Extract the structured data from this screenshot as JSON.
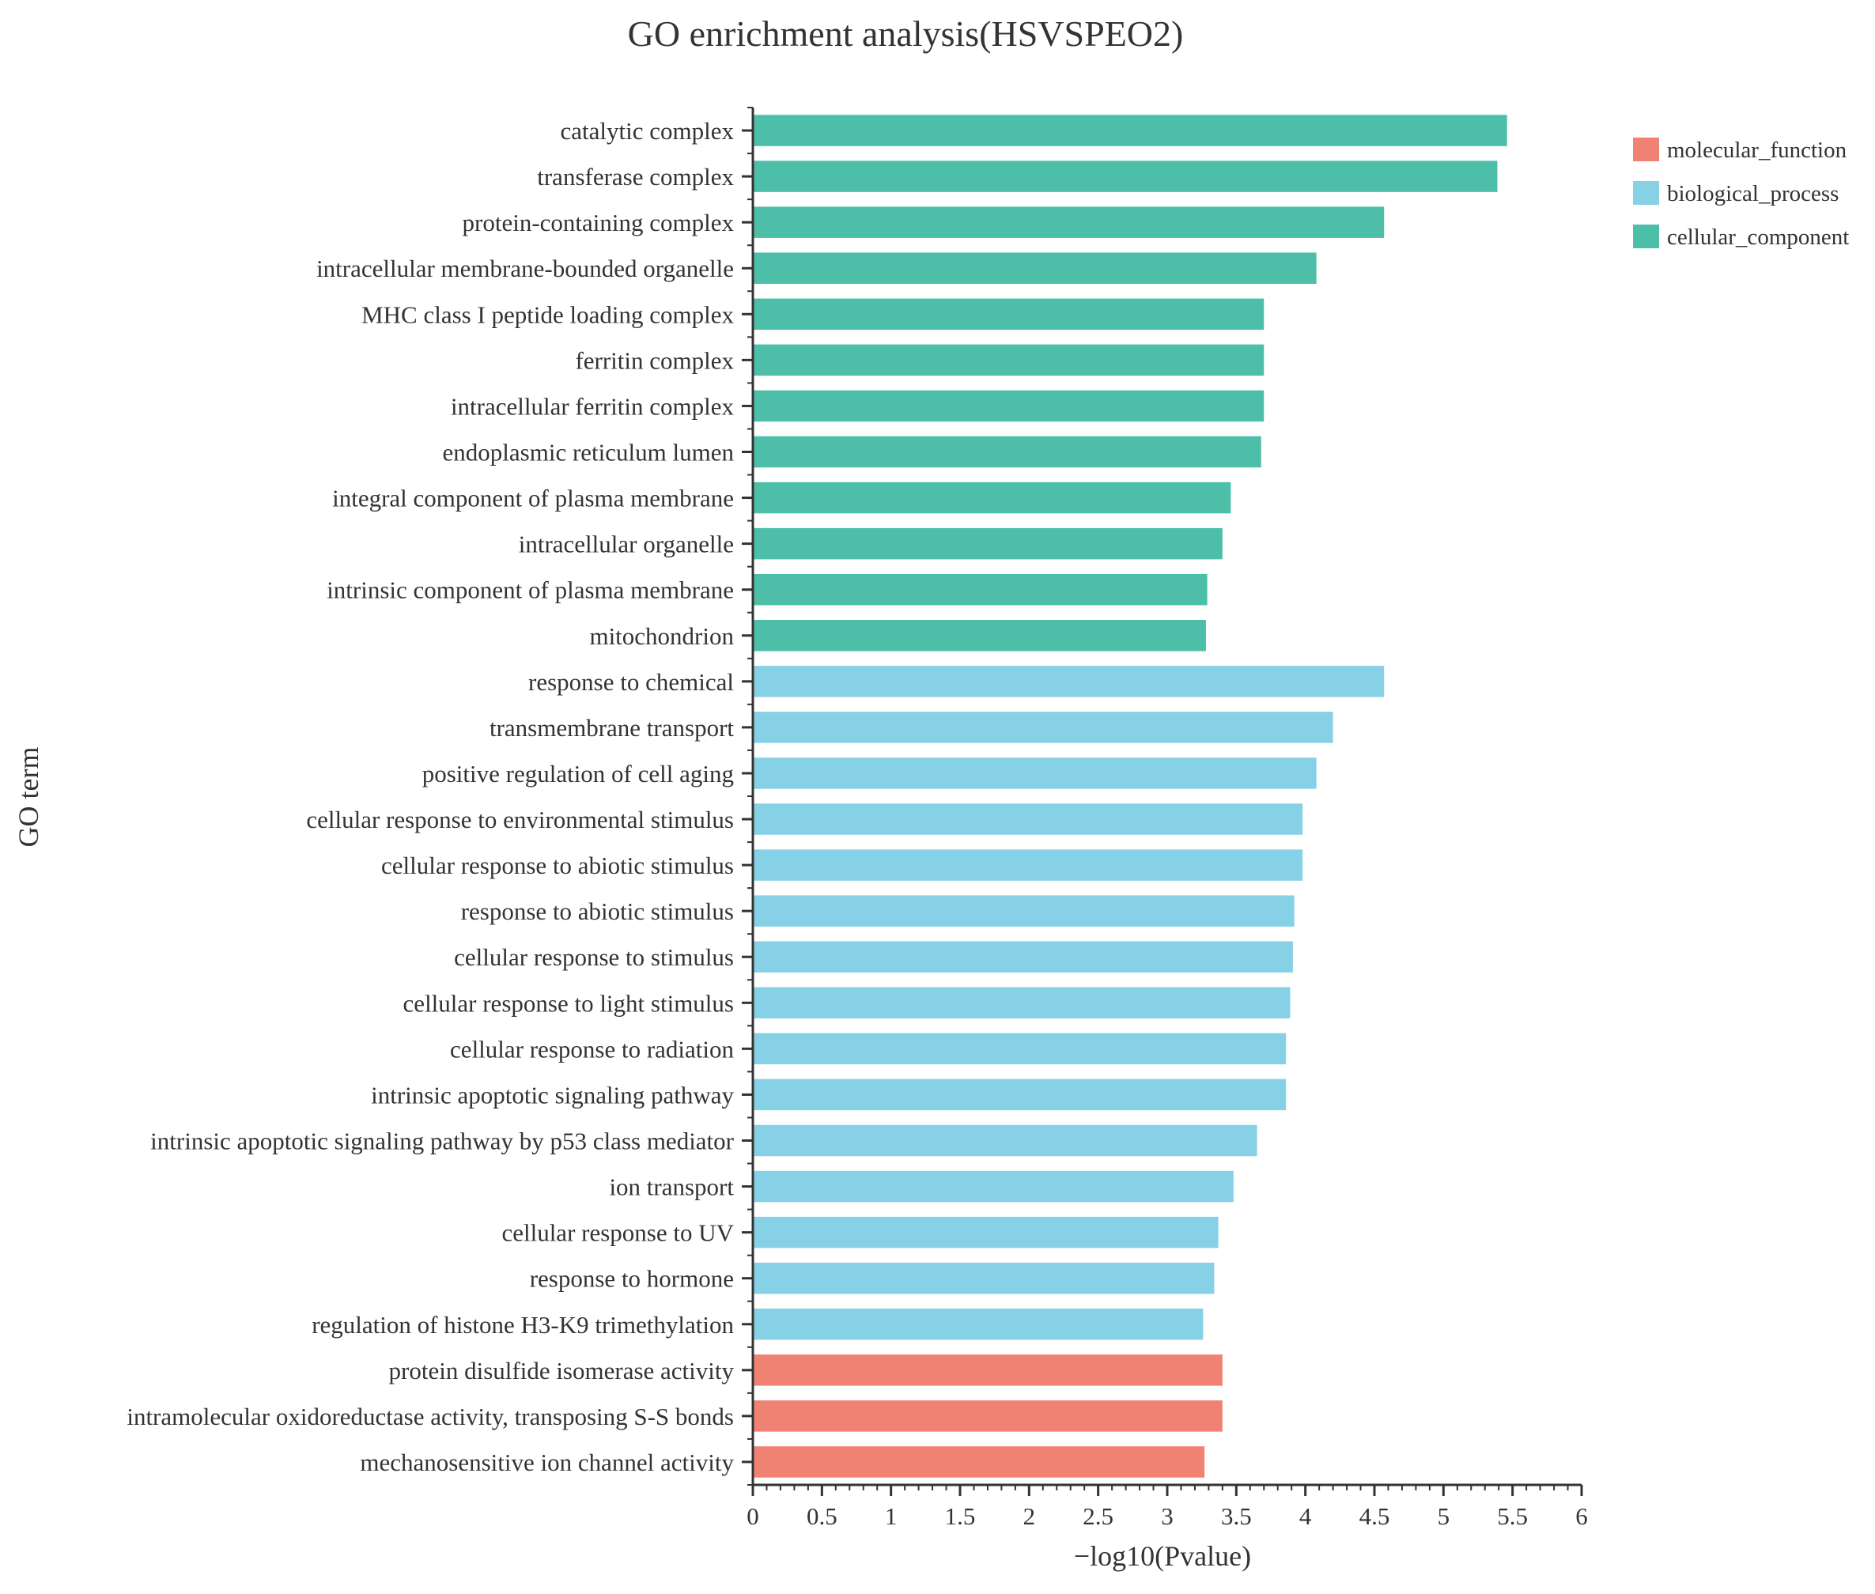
{
  "chart_data": {
    "type": "bar",
    "orientation": "horizontal",
    "title": "GO enrichment analysis(HSVSPEO2)",
    "xlabel": "−log10(Pvalue)",
    "ylabel": "GO term",
    "xlim": [
      0,
      6
    ],
    "x_ticks": [
      "0",
      "0.5",
      "1",
      "1.5",
      "2",
      "2.5",
      "3",
      "3.5",
      "4",
      "4.5",
      "5",
      "5.5",
      "6"
    ],
    "legend_position": "top-right",
    "legend": [
      {
        "name": "molecular_function",
        "color": "#F08274"
      },
      {
        "name": "biological_process",
        "color": "#87D1E6"
      },
      {
        "name": "cellular_component",
        "color": "#4DBEA8"
      }
    ],
    "bars": [
      {
        "term": "catalytic complex",
        "value": 5.46,
        "category": "cellular_component"
      },
      {
        "term": "transferase complex",
        "value": 5.39,
        "category": "cellular_component"
      },
      {
        "term": "protein-containing complex",
        "value": 4.57,
        "category": "cellular_component"
      },
      {
        "term": "intracellular membrane-bounded organelle",
        "value": 4.08,
        "category": "cellular_component"
      },
      {
        "term": "MHC class I peptide loading complex",
        "value": 3.7,
        "category": "cellular_component"
      },
      {
        "term": "ferritin complex",
        "value": 3.7,
        "category": "cellular_component"
      },
      {
        "term": "intracellular ferritin complex",
        "value": 3.7,
        "category": "cellular_component"
      },
      {
        "term": "endoplasmic reticulum lumen",
        "value": 3.68,
        "category": "cellular_component"
      },
      {
        "term": "integral component of plasma membrane",
        "value": 3.46,
        "category": "cellular_component"
      },
      {
        "term": "intracellular organelle",
        "value": 3.4,
        "category": "cellular_component"
      },
      {
        "term": "intrinsic component of plasma membrane",
        "value": 3.29,
        "category": "cellular_component"
      },
      {
        "term": "mitochondrion",
        "value": 3.28,
        "category": "cellular_component"
      },
      {
        "term": "response to chemical",
        "value": 4.57,
        "category": "biological_process"
      },
      {
        "term": "transmembrane transport",
        "value": 4.2,
        "category": "biological_process"
      },
      {
        "term": "positive regulation of cell aging",
        "value": 4.08,
        "category": "biological_process"
      },
      {
        "term": "cellular response to environmental stimulus",
        "value": 3.98,
        "category": "biological_process"
      },
      {
        "term": "cellular response to abiotic stimulus",
        "value": 3.98,
        "category": "biological_process"
      },
      {
        "term": "response to abiotic stimulus",
        "value": 3.92,
        "category": "biological_process"
      },
      {
        "term": "cellular response to stimulus",
        "value": 3.91,
        "category": "biological_process"
      },
      {
        "term": "cellular response to light stimulus",
        "value": 3.89,
        "category": "biological_process"
      },
      {
        "term": "cellular response to radiation",
        "value": 3.86,
        "category": "biological_process"
      },
      {
        "term": "intrinsic apoptotic signaling pathway",
        "value": 3.86,
        "category": "biological_process"
      },
      {
        "term": "intrinsic apoptotic signaling pathway by p53 class mediator",
        "value": 3.65,
        "category": "biological_process"
      },
      {
        "term": "ion transport",
        "value": 3.48,
        "category": "biological_process"
      },
      {
        "term": "cellular response to UV",
        "value": 3.37,
        "category": "biological_process"
      },
      {
        "term": "response to hormone",
        "value": 3.34,
        "category": "biological_process"
      },
      {
        "term": "regulation of histone H3-K9 trimethylation",
        "value": 3.26,
        "category": "biological_process"
      },
      {
        "term": "protein disulfide isomerase activity",
        "value": 3.4,
        "category": "molecular_function"
      },
      {
        "term": "intramolecular oxidoreductase activity, transposing S-S bonds",
        "value": 3.4,
        "category": "molecular_function"
      },
      {
        "term": "mechanosensitive ion channel activity",
        "value": 3.27,
        "category": "molecular_function"
      }
    ]
  }
}
